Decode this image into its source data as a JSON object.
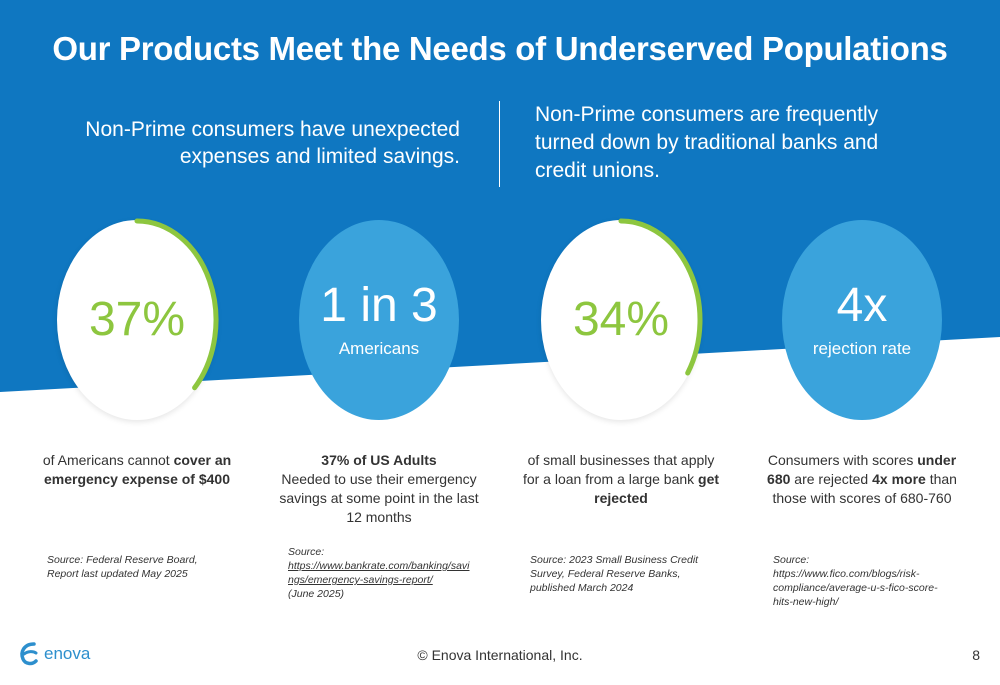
{
  "title": "Our Products Meet the Needs of Underserved Populations",
  "intro": {
    "left": "Non-Prime consumers have unexpected expenses and limited savings.",
    "right": "Non-Prime consumers are frequently turned down by traditional banks and credit unions."
  },
  "colors": {
    "brand_blue": "#0f77c1",
    "circle_blue": "#3aa3dc",
    "accent_green": "#8dc63f"
  },
  "stats": [
    {
      "value": "37%",
      "ring_fraction": 0.37,
      "desc_pre": "of Americans cannot ",
      "desc_bold": "cover an emergency expense of $400",
      "source": "Source: Federal Reserve Board, Report last updated May 2025"
    },
    {
      "value": "1 in 3",
      "subtitle": "Americans",
      "desc_bold": "37% of US Adults",
      "desc_rest": "Needed to use their emergency savings at some point in the last 12 months",
      "source_label": "Source:",
      "source_link": "https://www.bankrate.com/banking/savings/emergency-savings-report/",
      "source_date": "(June 2025)"
    },
    {
      "value": "34%",
      "ring_fraction": 0.34,
      "desc_pre": "of small businesses that apply for a loan from a large bank ",
      "desc_bold": "get rejected",
      "source": "Source: 2023 Small Business Credit Survey, Federal Reserve Banks, published March 2024"
    },
    {
      "value": "4x",
      "subtitle": "rejection rate",
      "desc_a": "Consumers with scores ",
      "desc_b": "under 680",
      "desc_c": " are rejected ",
      "desc_d": "4x more",
      "desc_e": " than those with scores of 680-760",
      "source": "Source: https://www.fico.com/blogs/risk-compliance/average-u-s-fico-score-hits-new-high/"
    }
  ],
  "footer": {
    "logo_text": "enova",
    "copyright": "© Enova International, Inc.",
    "page_number": "8"
  }
}
